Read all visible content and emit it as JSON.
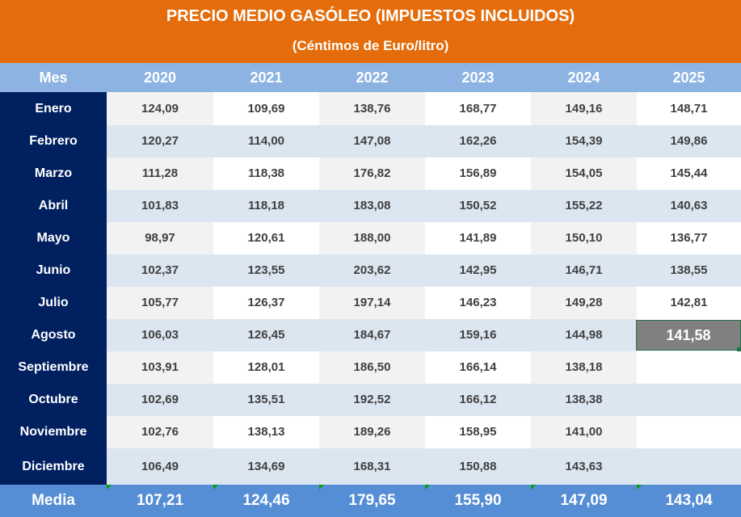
{
  "title": "PRECIO MEDIO GASÓLEO (IMPUESTOS INCLUIDOS)",
  "subtitle": "(Céntimos de Euro/litro)",
  "columns": [
    "Mes",
    "2020",
    "2021",
    "2022",
    "2023",
    "2024",
    "2025"
  ],
  "months": [
    "Enero",
    "Febrero",
    "Marzo",
    "Abril",
    "Mayo",
    "Junio",
    "Julio",
    "Agosto",
    "Septiembre",
    "Octubre",
    "Noviembre",
    "Diciembre"
  ],
  "values": [
    [
      "124,09",
      "109,69",
      "138,76",
      "168,77",
      "149,16",
      "148,71"
    ],
    [
      "120,27",
      "114,00",
      "147,08",
      "162,26",
      "154,39",
      "149,86"
    ],
    [
      "111,28",
      "118,38",
      "176,82",
      "156,89",
      "154,05",
      "145,44"
    ],
    [
      "101,83",
      "118,18",
      "183,08",
      "150,52",
      "155,22",
      "140,63"
    ],
    [
      "98,97",
      "120,61",
      "188,00",
      "141,89",
      "150,10",
      "136,77"
    ],
    [
      "102,37",
      "123,55",
      "203,62",
      "142,95",
      "146,71",
      "138,55"
    ],
    [
      "105,77",
      "126,37",
      "197,14",
      "146,23",
      "149,28",
      "142,81"
    ],
    [
      "106,03",
      "126,45",
      "184,67",
      "159,16",
      "144,98",
      "141,58"
    ],
    [
      "103,91",
      "128,01",
      "186,50",
      "166,14",
      "138,18",
      ""
    ],
    [
      "102,69",
      "135,51",
      "192,52",
      "166,12",
      "138,38",
      ""
    ],
    [
      "102,76",
      "138,13",
      "189,26",
      "158,95",
      "141,00",
      ""
    ],
    [
      "106,49",
      "134,69",
      "168,31",
      "150,88",
      "143,63",
      ""
    ]
  ],
  "average_label": "Media",
  "averages": [
    "107,21",
    "124,46",
    "179,65",
    "155,90",
    "147,09",
    "143,04"
  ],
  "colors": {
    "header_bg": "#e46c0a",
    "column_header_bg": "#8db3e2",
    "month_column_bg": "#002060",
    "footer_bg": "#558ed5",
    "selected_cell_bg": "#808080"
  }
}
